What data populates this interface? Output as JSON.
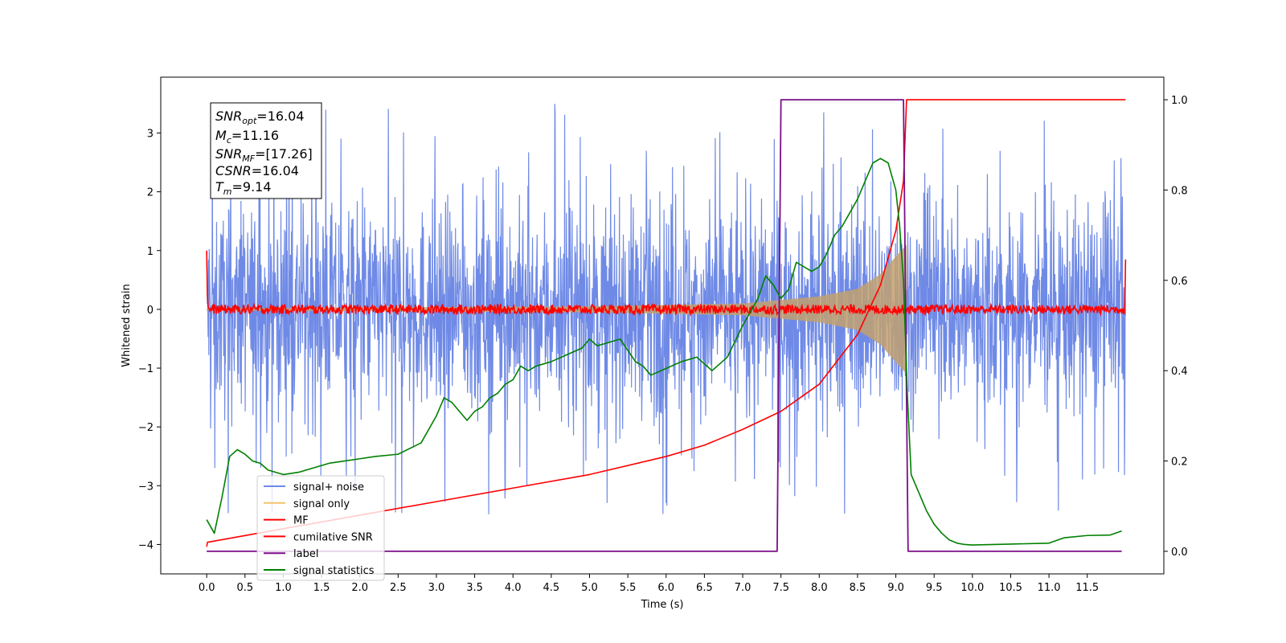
{
  "chart_data": {
    "type": "line",
    "title": "",
    "xlabel": "Time (s)",
    "ylabel": "Whitened strain",
    "xlim": [
      -0.6,
      12.5
    ],
    "ylim": [
      -4.5,
      3.95
    ],
    "y2lim": [
      -0.05,
      1.05
    ],
    "grid": false,
    "legend_position": "lower-left",
    "x_ticks": [
      "0.0",
      "0.5",
      "1.0",
      "1.5",
      "2.0",
      "2.5",
      "3.0",
      "3.5",
      "4.0",
      "4.5",
      "5.0",
      "5.5",
      "6.0",
      "6.5",
      "7.0",
      "7.5",
      "8.0",
      "8.5",
      "9.0",
      "9.5",
      "10.0",
      "10.5",
      "11.0",
      "11.5"
    ],
    "y_ticks": [
      "3",
      "2",
      "1",
      "0",
      "−1",
      "−2",
      "−3",
      "−4"
    ],
    "y2_ticks": [
      "1.0",
      "0.8",
      "0.6",
      "0.4",
      "0.2",
      "0.0"
    ],
    "annotation": {
      "snr_opt": {
        "main": "SNR",
        "sub": "opt",
        "value": "=16.04"
      },
      "mc": {
        "main": "M",
        "sub": "c",
        "value": "=11.16"
      },
      "snr_mf": {
        "main": "SNR",
        "sub": "MF",
        "value": "=[17.26]"
      },
      "csnr": {
        "main": "CSNR",
        "sub": "",
        "value": "=16.04"
      },
      "tm": {
        "main": "T",
        "sub": "m",
        "value": "=9.14"
      }
    },
    "series": [
      {
        "name": "signal+ noise",
        "color": "#6f8ae6",
        "axis": "left",
        "x_range": [
          0.0,
          12.0
        ],
        "amplitude_typical": 1.8,
        "amplitude_max": 3.6
      },
      {
        "name": "signal only",
        "color": "#f5c26b",
        "axis": "left",
        "x_range": [
          0.0,
          9.14
        ],
        "envelope": [
          [
            0.0,
            0.02
          ],
          [
            5.0,
            0.05
          ],
          [
            7.0,
            0.1
          ],
          [
            8.0,
            0.22
          ],
          [
            8.5,
            0.35
          ],
          [
            8.8,
            0.6
          ],
          [
            9.0,
            0.9
          ],
          [
            9.14,
            1.1
          ]
        ]
      },
      {
        "name": "MF",
        "color": "#ff0000",
        "axis": "left",
        "x_range": [
          0.0,
          12.0
        ],
        "noise_amplitude": 0.08,
        "start_value": 1.0,
        "end_value": 0.85
      },
      {
        "name": "cumilative SNR",
        "color": "#ff0000",
        "axis": "right",
        "x": [
          0.0,
          0.01,
          1.0,
          2.0,
          3.0,
          4.0,
          5.0,
          6.0,
          6.5,
          7.0,
          7.5,
          8.0,
          8.5,
          8.8,
          9.0,
          9.1,
          9.14,
          12.0
        ],
        "values": [
          0.01,
          0.02,
          0.05,
          0.08,
          0.11,
          0.14,
          0.17,
          0.21,
          0.235,
          0.27,
          0.31,
          0.37,
          0.48,
          0.59,
          0.71,
          0.82,
          1.0,
          1.0
        ]
      },
      {
        "name": "label",
        "color": "#7b0e8a",
        "axis": "right",
        "x": [
          0.0,
          7.45,
          7.5,
          9.1,
          9.16,
          11.95
        ],
        "values": [
          0.0,
          0.0,
          1.0,
          1.0,
          0.0,
          0.0
        ]
      },
      {
        "name": "signal statistics",
        "color": "#008000",
        "axis": "right",
        "x": [
          0.0,
          0.1,
          0.2,
          0.3,
          0.4,
          0.5,
          0.6,
          0.7,
          0.8,
          1.0,
          1.2,
          1.4,
          1.6,
          1.8,
          2.0,
          2.2,
          2.5,
          2.8,
          3.0,
          3.1,
          3.2,
          3.3,
          3.4,
          3.5,
          3.6,
          3.7,
          3.8,
          3.9,
          4.0,
          4.1,
          4.2,
          4.3,
          4.5,
          4.7,
          4.9,
          5.0,
          5.1,
          5.2,
          5.3,
          5.4,
          5.5,
          5.6,
          5.7,
          5.8,
          6.0,
          6.2,
          6.4,
          6.6,
          6.8,
          7.0,
          7.2,
          7.3,
          7.4,
          7.5,
          7.6,
          7.7,
          7.8,
          7.9,
          8.0,
          8.1,
          8.2,
          8.3,
          8.4,
          8.5,
          8.6,
          8.7,
          8.8,
          8.9,
          9.0,
          9.05,
          9.1,
          9.15,
          9.2,
          9.3,
          9.4,
          9.5,
          9.6,
          9.7,
          9.8,
          9.9,
          10.0,
          10.5,
          11.0,
          11.2,
          11.5,
          11.8,
          11.95
        ],
        "values": [
          0.07,
          0.04,
          0.12,
          0.21,
          0.225,
          0.215,
          0.2,
          0.195,
          0.18,
          0.17,
          0.175,
          0.185,
          0.195,
          0.2,
          0.205,
          0.21,
          0.215,
          0.24,
          0.3,
          0.34,
          0.33,
          0.31,
          0.29,
          0.31,
          0.32,
          0.34,
          0.35,
          0.37,
          0.38,
          0.41,
          0.4,
          0.41,
          0.42,
          0.435,
          0.45,
          0.47,
          0.455,
          0.46,
          0.465,
          0.47,
          0.445,
          0.42,
          0.41,
          0.39,
          0.405,
          0.42,
          0.43,
          0.4,
          0.43,
          0.5,
          0.56,
          0.61,
          0.59,
          0.56,
          0.58,
          0.64,
          0.63,
          0.62,
          0.63,
          0.66,
          0.7,
          0.72,
          0.75,
          0.78,
          0.82,
          0.86,
          0.87,
          0.86,
          0.8,
          0.72,
          0.6,
          0.35,
          0.17,
          0.13,
          0.09,
          0.06,
          0.04,
          0.025,
          0.018,
          0.015,
          0.014,
          0.016,
          0.018,
          0.03,
          0.035,
          0.036,
          0.045
        ]
      }
    ]
  }
}
